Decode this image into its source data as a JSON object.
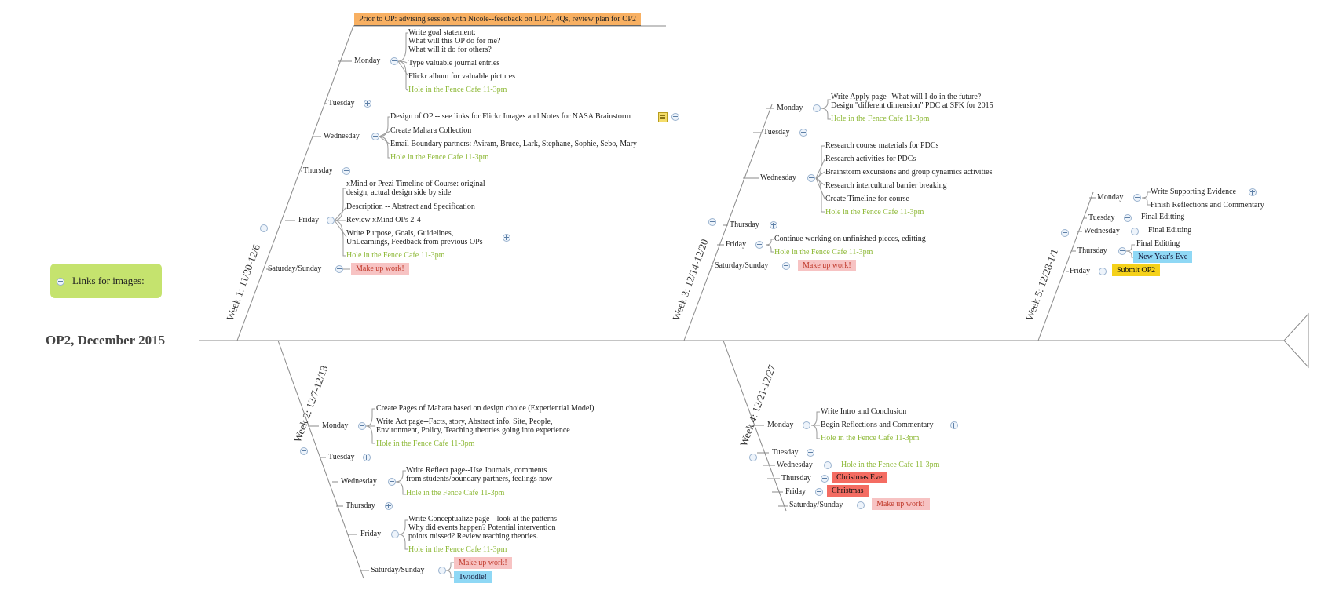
{
  "central_topic": "OP2, December 2015",
  "floating_topic": "Links for images:",
  "weeks": [
    {
      "label": "Week 1: 11/30-12/6",
      "callout": "Prior to OP: advising session with Nicole--feedback on LIPD, 4Qs, review plan for OP2",
      "days": {
        "monday": "Monday",
        "tuesday": "Tuesday",
        "wednesday": "Wednesday",
        "thursday": "Thursday",
        "friday": "Friday",
        "weekend": "Saturday/Sunday"
      },
      "monday_tasks": [
        "Write goal statement:",
        "What will this OP do for me?",
        "What will it do for others?",
        "Type valuable journal entries",
        "Flickr album for valuable pictures",
        "Hole in the Fence Cafe 11-3pm"
      ],
      "wednesday_tasks": [
        "Design of OP --  see links for Flickr Images and Notes for NASA Brainstorm",
        "Create Mahara Collection",
        "Email Boundary partners: Aviram, Bruce, Lark, Stephane, Sophie, Sebo, Mary",
        "Hole in the Fence Cafe 11-3pm"
      ],
      "friday_tasks": [
        "xMind or Prezi Timeline of Course: original",
        "design, actual design side by side",
        "Description -- Abstract and Specification",
        "Review xMind OPs 2-4",
        "Write Purpose, Goals, Guidelines,",
        "UnLearnings, Feedback from previous OPs",
        "Hole in the Fence Cafe 11-3pm"
      ],
      "weekend_tasks": [
        "Make up work!"
      ]
    },
    {
      "label": "Week 2: 12/7-12/13",
      "days": {
        "monday": "Monday",
        "tuesday": "Tuesday",
        "wednesday": "Wednesday",
        "thursday": "Thursday",
        "friday": "Friday",
        "weekend": "Saturday/Sunday"
      },
      "monday_tasks": [
        "Create Pages of Mahara based on design choice (Experiential Model)",
        "Write Act page--Facts, story, Abstract info. Site, People,",
        "Environment, Policy, Teaching theories going into experience",
        "Hole in the Fence Cafe 11-3pm"
      ],
      "wednesday_tasks": [
        "Write Reflect page--Use Journals, comments",
        "from students/boundary partners, feelings now",
        "Hole in the Fence Cafe 11-3pm"
      ],
      "friday_tasks": [
        "Write Conceptualize page --look at the patterns--",
        "Why did events happen? Potential intervention",
        "points missed? Review teaching theories.",
        "Hole in the Fence Cafe 11-3pm"
      ],
      "weekend_tasks": [
        "Make up work!",
        "Twiddle!"
      ]
    },
    {
      "label": "Week 3: 12/14-12/20",
      "days": {
        "monday": "Monday",
        "tuesday": "Tuesday",
        "wednesday": "Wednesday",
        "thursday": "Thursday",
        "friday": "Friday",
        "weekend": "Saturday/Sunday"
      },
      "monday_tasks": [
        "Write Apply page--What will I do in the future?",
        "Design \"different dimension\" PDC at SFK for 2015",
        "Hole in the Fence Cafe 11-3pm"
      ],
      "wednesday_tasks": [
        "Research course materials for PDCs",
        "Research activities for PDCs",
        "Brainstorm excursions and group dynamics activities",
        "Research intercultural barrier breaking",
        "Create Timeline for course",
        "Hole in the Fence Cafe 11-3pm"
      ],
      "friday_tasks": [
        "Continue working on unfinished pieces, editting",
        "Hole in the Fence Cafe 11-3pm"
      ],
      "weekend_tasks": [
        "Make up work!"
      ]
    },
    {
      "label": "Week 4: 12/21-12/27",
      "days": {
        "monday": "Monday",
        "tuesday": "Tuesday",
        "wednesday": "Wednesday",
        "thursday": "Thursday",
        "friday": "Friday",
        "weekend": "Saturday/Sunday"
      },
      "monday_tasks": [
        "Write Intro and Conclusion",
        "Begin Reflections and Commentary",
        "Hole in the Fence Cafe 11-3pm"
      ],
      "wednesday_tasks": [
        "Hole in the Fence Cafe 11-3pm"
      ],
      "thursday_tasks": [
        "Christmas Eve"
      ],
      "friday_tasks": [
        "Christmas"
      ],
      "weekend_tasks": [
        "Make up work!"
      ]
    },
    {
      "label": "Week 5: 12/28-1/1",
      "days": {
        "monday": "Monday",
        "tuesday": "Tuesday",
        "wednesday": "Wednesday",
        "thursday": "Thursday",
        "friday": "Friday"
      },
      "monday_tasks": [
        "Write Supporting Evidence",
        "Finish Reflections and Commentary"
      ],
      "tuesday_tasks": [
        "Final Editting"
      ],
      "wednesday_tasks": [
        "Final Editting"
      ],
      "thursday_tasks": [
        "Final Editting",
        "New Year's Eve"
      ],
      "friday_tasks": [
        "Submit OP2"
      ]
    }
  ],
  "colors": {
    "line": "#888888",
    "green_text": "#8db836",
    "pink_tag": "#f7c3c3",
    "red_tag": "#f46c62",
    "blue_tag": "#8fd8f5",
    "yellow_tag": "#f5d11a",
    "orange_tag": "#f8b062",
    "floating_topic": "#c5e36e"
  }
}
